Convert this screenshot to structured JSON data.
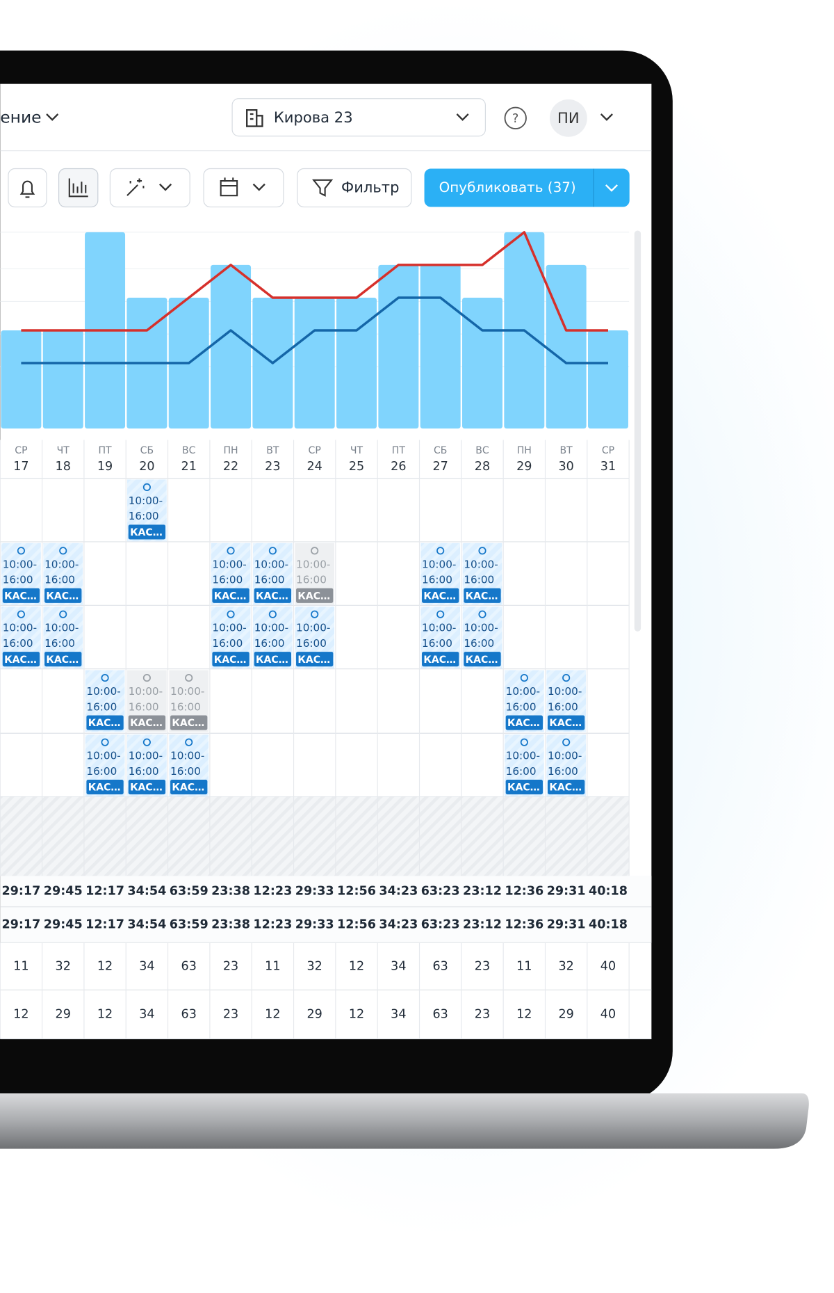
{
  "header": {
    "section": "ение",
    "location": "Кирова 23",
    "avatar": "ПИ"
  },
  "toolbar": {
    "filter": "Фильтр",
    "publish": "Опубликовать (37)"
  },
  "chart": {
    "type": "bar",
    "color": "#80d4fd",
    "ylim": [
      0,
      6
    ],
    "values": [
      3,
      3,
      6,
      4,
      4,
      5,
      4,
      4,
      4,
      5,
      5,
      4,
      6,
      5,
      3
    ],
    "series": [
      {
        "color": "#d6302b",
        "values": [
          3,
          3,
          3,
          3,
          4,
          5,
          4,
          4,
          4,
          5,
          5,
          5,
          6,
          3,
          3
        ]
      },
      {
        "color": "#1466a8",
        "values": [
          2,
          2,
          2,
          2,
          2,
          3,
          2,
          3,
          3,
          4,
          4,
          3,
          3,
          2,
          2
        ]
      }
    ]
  },
  "days": {
    "weekdays": [
      "СР",
      "ЧТ",
      "ПТ",
      "СБ",
      "ВС",
      "ПН",
      "ВТ",
      "СР",
      "ЧТ",
      "ПТ",
      "СБ",
      "ВС",
      "ПН",
      "ВТ",
      "СР"
    ],
    "dates": [
      17,
      18,
      19,
      20,
      21,
      22,
      23,
      24,
      25,
      26,
      27,
      28,
      29,
      30,
      31
    ]
  },
  "grid": {
    "rows": [
      [
        null,
        null,
        null,
        {
          "start": "10:00-",
          "end": "16:00",
          "role": "КАС…",
          "color": "#1577c9"
        },
        null,
        null,
        null,
        null,
        null,
        null,
        null,
        null,
        null,
        null,
        null
      ],
      [
        {
          "start": "10:00-",
          "end": "16:00",
          "role": "КАС…",
          "color": "#1577c9"
        },
        {
          "start": "10:00-",
          "end": "16:00",
          "role": "КАС…",
          "color": "#1577c9"
        },
        null,
        null,
        null,
        {
          "start": "10:00-",
          "end": "16:00",
          "role": "КАС…",
          "color": "#1577c9"
        },
        {
          "start": "10:00-",
          "end": "16:00",
          "role": "КАС…",
          "color": "#1577c9"
        },
        {
          "start": "10:00-",
          "end": "16:00",
          "role": "КАС…",
          "color": "#8c9198"
        },
        null,
        null,
        {
          "start": "10:00-",
          "end": "16:00",
          "role": "КАС…",
          "color": "#1577c9"
        },
        {
          "start": "10:00-",
          "end": "16:00",
          "role": "КАС…",
          "color": "#1577c9"
        },
        null,
        null,
        null
      ],
      [
        {
          "start": "10:00-",
          "end": "16:00",
          "role": "КАС…",
          "color": "#1577c9"
        },
        {
          "start": "10:00-",
          "end": "16:00",
          "role": "КАС…",
          "color": "#1577c9"
        },
        null,
        null,
        null,
        {
          "start": "10:00-",
          "end": "16:00",
          "role": "КАС…",
          "color": "#1577c9"
        },
        {
          "start": "10:00-",
          "end": "16:00",
          "role": "КАС…",
          "color": "#1577c9"
        },
        {
          "start": "10:00-",
          "end": "16:00",
          "role": "КАС…",
          "color": "#1577c9"
        },
        null,
        null,
        {
          "start": "10:00-",
          "end": "16:00",
          "role": "КАС…",
          "color": "#1577c9"
        },
        {
          "start": "10:00-",
          "end": "16:00",
          "role": "КАС…",
          "color": "#1577c9"
        },
        null,
        null,
        null
      ],
      [
        null,
        null,
        {
          "start": "10:00-",
          "end": "16:00",
          "role": "КАС…",
          "color": "#1577c9"
        },
        {
          "start": "10:00-",
          "end": "16:00",
          "role": "КАС…",
          "color": "#8c9198"
        },
        {
          "start": "10:00-",
          "end": "16:00",
          "role": "КАС…",
          "color": "#8c9198"
        },
        null,
        null,
        null,
        null,
        null,
        null,
        null,
        {
          "start": "10:00-",
          "end": "16:00",
          "role": "КАС…",
          "color": "#1577c9"
        },
        {
          "start": "10:00-",
          "end": "16:00",
          "role": "КАС…",
          "color": "#1577c9"
        },
        null
      ],
      [
        null,
        null,
        {
          "start": "10:00-",
          "end": "16:00",
          "role": "КАС…",
          "color": "#1577c9"
        },
        {
          "start": "10:00-",
          "end": "16:00",
          "role": "КАС…",
          "color": "#1577c9"
        },
        {
          "start": "10:00-",
          "end": "16:00",
          "role": "КАС…",
          "color": "#1577c9"
        },
        null,
        null,
        null,
        null,
        null,
        null,
        null,
        {
          "start": "10:00-",
          "end": "16:00",
          "role": "КАС…",
          "color": "#1577c9"
        },
        {
          "start": "10:00-",
          "end": "16:00",
          "role": "КАС…",
          "color": "#1577c9"
        },
        null
      ]
    ]
  },
  "totals": {
    "rows": [
      [
        "29:17",
        "29:45",
        "12:17",
        "34:54",
        "63:59",
        "23:38",
        "12:23",
        "29:33",
        "12:56",
        "34:23",
        "63:23",
        "23:12",
        "12:36",
        "29:31",
        "40:18"
      ],
      [
        "29:17",
        "29:45",
        "12:17",
        "34:54",
        "63:59",
        "23:38",
        "12:23",
        "29:33",
        "12:56",
        "34:23",
        "63:23",
        "23:12",
        "12:36",
        "29:31",
        "40:18"
      ],
      [
        11,
        32,
        12,
        34,
        63,
        23,
        11,
        32,
        12,
        34,
        63,
        23,
        11,
        32,
        40
      ],
      [
        12,
        29,
        12,
        34,
        63,
        23,
        12,
        29,
        12,
        34,
        63,
        23,
        12,
        29,
        40
      ]
    ]
  }
}
